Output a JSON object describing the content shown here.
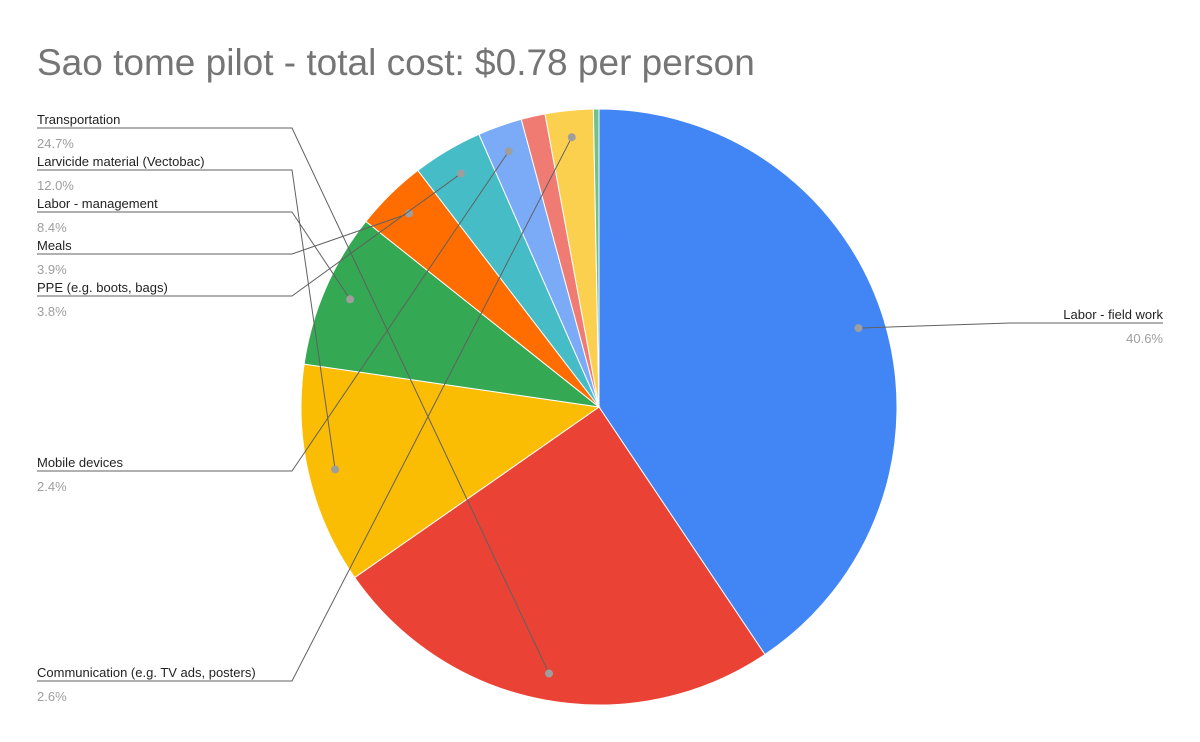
{
  "chart_data": {
    "type": "pie",
    "title": "Sao tome pilot - total cost: $0.78 per person",
    "series": [
      {
        "name": "",
        "slices": [
          {
            "label": "Labor - field work",
            "value": 40.6,
            "percent_label": "40.6%",
            "color": "#4285f4",
            "label_side": "right",
            "show_label": true
          },
          {
            "label": "Transportation",
            "value": 24.7,
            "percent_label": "24.7%",
            "color": "#ea4335",
            "label_side": "left",
            "show_label": true
          },
          {
            "label": "Larvicide material (Vectobac)",
            "value": 12.0,
            "percent_label": "12.0%",
            "color": "#fbbc04",
            "label_side": "left",
            "show_label": true
          },
          {
            "label": "Labor - management",
            "value": 8.4,
            "percent_label": "8.4%",
            "color": "#34a853",
            "label_side": "left",
            "show_label": true
          },
          {
            "label": "Meals",
            "value": 3.9,
            "percent_label": "3.9%",
            "color": "#ff6d01",
            "label_side": "left",
            "show_label": true
          },
          {
            "label": "PPE (e.g. boots, bags)",
            "value": 3.8,
            "percent_label": "3.8%",
            "color": "#46bdc6",
            "label_side": "left",
            "show_label": true
          },
          {
            "label": "Mobile devices",
            "value": 2.4,
            "percent_label": "2.4%",
            "color": "#7baaf7",
            "label_side": "left",
            "show_label": true
          },
          {
            "label": "",
            "value": 1.3,
            "percent_label": "",
            "color": "#f07b72",
            "label_side": "left",
            "show_label": false
          },
          {
            "label": "Communication (e.g. TV ads, posters)",
            "value": 2.6,
            "percent_label": "2.6%",
            "color": "#fcd04f",
            "label_side": "left",
            "show_label": true
          },
          {
            "label": "",
            "value": 0.3,
            "percent_label": "",
            "color": "#71c287",
            "label_side": "left",
            "show_label": false
          }
        ]
      }
    ],
    "start_angle_deg": 0,
    "direction": "clockwise",
    "legend": "none",
    "labels": "outside with leader lines"
  }
}
